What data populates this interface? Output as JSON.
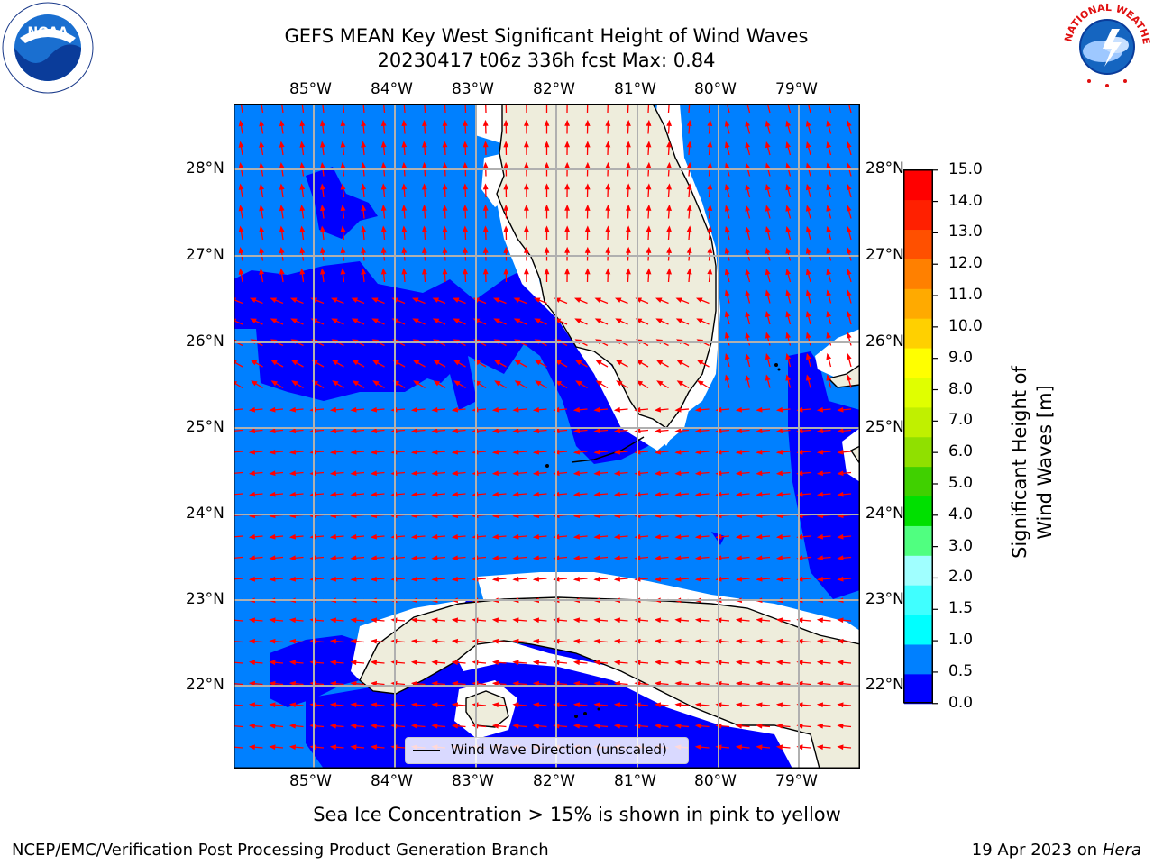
{
  "header": {
    "title_line1": "GEFS MEAN Key West Significant Height of Wind Waves",
    "title_line2": "20230417 t06z 336h fcst   Max: 0.84"
  },
  "map": {
    "lon_labels": [
      "85°W",
      "84°W",
      "83°W",
      "82°W",
      "81°W",
      "80°W",
      "79°W"
    ],
    "lat_labels": [
      "28°N",
      "27°N",
      "26°N",
      "25°N",
      "24°N",
      "23°N",
      "22°N"
    ],
    "legend_label": "Wind Wave Direction (unscaled)",
    "colors": {
      "land": "#eeeddc",
      "sea_0_05": "#0000ff",
      "sea_05_10": "#0080ff",
      "arrow": "#ff0000"
    }
  },
  "colorbar": {
    "title": "Significant Height of Wind Waves [m]",
    "tick_labels": [
      "0.0",
      "0.5",
      "1.0",
      "1.5",
      "2.0",
      "3.0",
      "4.0",
      "5.0",
      "6.0",
      "7.0",
      "8.0",
      "9.0",
      "10.0",
      "11.0",
      "12.0",
      "13.0",
      "14.0",
      "15.0"
    ],
    "colors": [
      "#0000ff",
      "#0080ff",
      "#00ffff",
      "#40ffff",
      "#a0ffff",
      "#50ff80",
      "#00e000",
      "#40d000",
      "#90e000",
      "#c0f000",
      "#e0ff00",
      "#ffff00",
      "#ffd000",
      "#ffaa00",
      "#ff8000",
      "#ff5000",
      "#ff2000",
      "#ff0000"
    ]
  },
  "subtitle": "Sea Ice Concentration > 15% is shown in pink to yellow",
  "footer": {
    "left": "NCEP/EMC/Verification Post Processing Product Generation Branch",
    "right_prefix": "19 Apr 2023 on ",
    "right_host": "Hera"
  },
  "logos": {
    "noaa_text": "NOAA",
    "nws_text": "NATIONAL WEATHER SERVICE"
  }
}
